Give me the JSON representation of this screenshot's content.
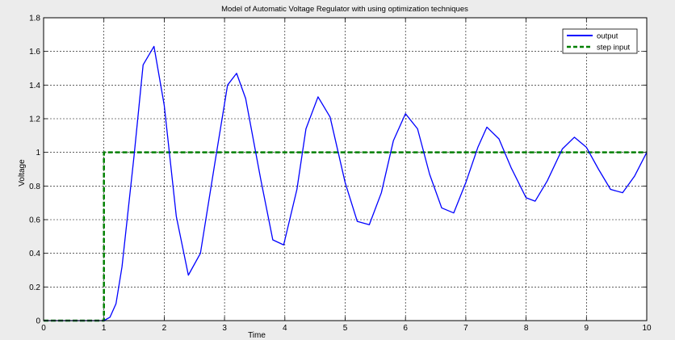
{
  "chart_data": {
    "type": "line",
    "title": "Model of Automatic Voltage Regulator with using optimization techniques",
    "xlabel": "Time",
    "ylabel": "Voltage",
    "xlim": [
      0,
      10
    ],
    "ylim": [
      0,
      1.8
    ],
    "xticks": [
      0,
      1,
      2,
      3,
      4,
      5,
      6,
      7,
      8,
      9,
      10
    ],
    "yticks": [
      0,
      0.2,
      0.4,
      0.6,
      0.8,
      1,
      1.2,
      1.4,
      1.6,
      1.8
    ],
    "xtick_labels": [
      "0",
      "1",
      "2",
      "3",
      "4",
      "5",
      "6",
      "7",
      "8",
      "9",
      "10"
    ],
    "ytick_labels": [
      "0",
      "0.2",
      "0.4",
      "0.6",
      "0.8",
      "1",
      "1.2",
      "1.4",
      "1.6",
      "1.8"
    ],
    "grid": true,
    "legend_position": "top-right",
    "series": [
      {
        "name": "output",
        "color": "#0000ff",
        "style": "solid",
        "x": [
          0,
          1.0,
          1.1,
          1.2,
          1.3,
          1.5,
          1.65,
          1.83,
          2.0,
          2.2,
          2.4,
          2.6,
          2.85,
          3.05,
          3.2,
          3.35,
          3.6,
          3.8,
          3.98,
          4.2,
          4.35,
          4.55,
          4.75,
          5.0,
          5.2,
          5.4,
          5.6,
          5.8,
          6.0,
          6.2,
          6.4,
          6.6,
          6.8,
          7.0,
          7.2,
          7.35,
          7.55,
          7.75,
          8.0,
          8.15,
          8.35,
          8.6,
          8.8,
          9.0,
          9.2,
          9.4,
          9.6,
          9.8,
          10.0
        ],
        "y": [
          0,
          0,
          0.02,
          0.1,
          0.32,
          0.98,
          1.52,
          1.63,
          1.28,
          0.62,
          0.27,
          0.4,
          0.96,
          1.4,
          1.47,
          1.32,
          0.84,
          0.48,
          0.45,
          0.78,
          1.14,
          1.33,
          1.21,
          0.82,
          0.59,
          0.57,
          0.76,
          1.07,
          1.23,
          1.14,
          0.87,
          0.67,
          0.64,
          0.82,
          1.03,
          1.15,
          1.08,
          0.91,
          0.73,
          0.71,
          0.83,
          1.02,
          1.09,
          1.03,
          0.9,
          0.78,
          0.76,
          0.86,
          1.0
        ]
      },
      {
        "name": "step input",
        "color": "#008000",
        "style": "dashed",
        "x": [
          0,
          1,
          1,
          10
        ],
        "y": [
          0,
          0,
          1,
          1
        ]
      }
    ]
  }
}
